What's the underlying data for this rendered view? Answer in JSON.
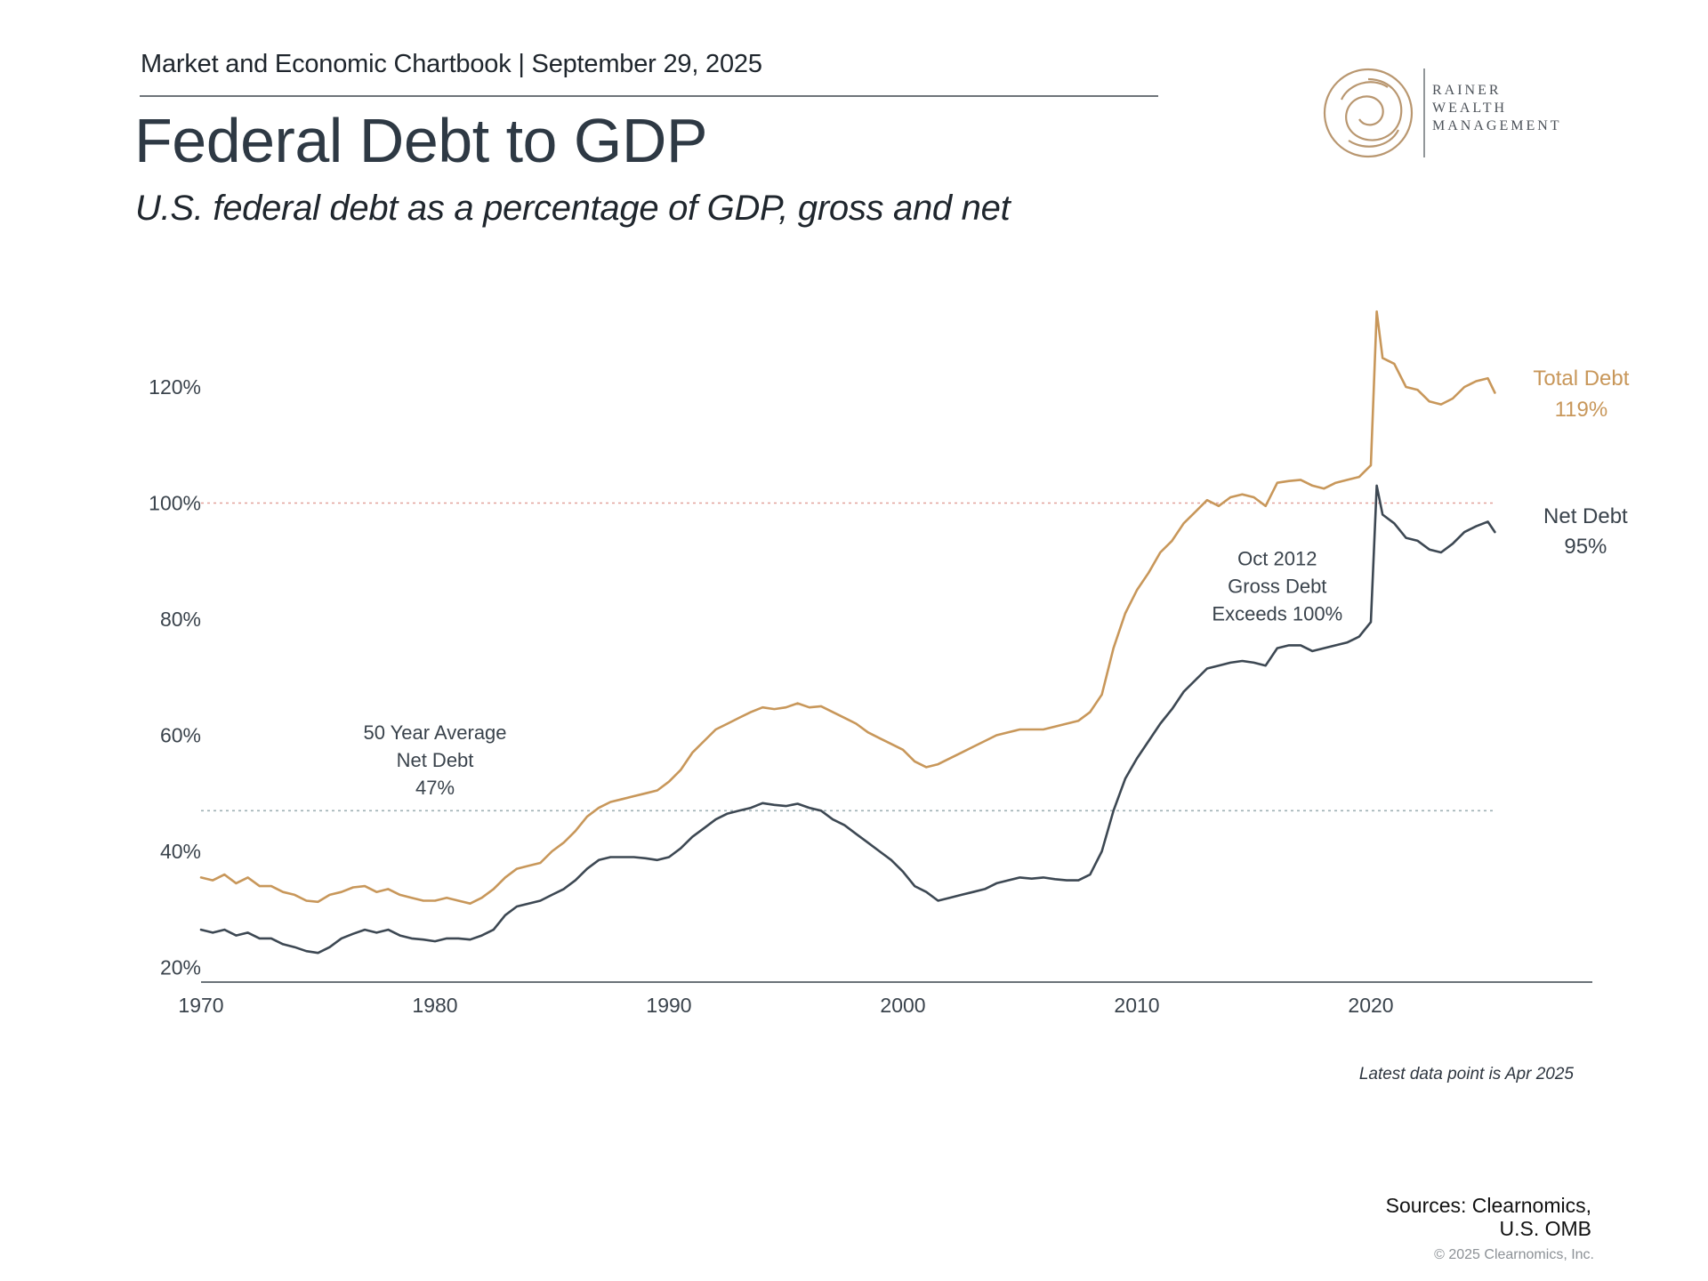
{
  "header": {
    "line": "Market and Economic Chartbook | September 29, 2025",
    "title": "Federal Debt to GDP",
    "subtitle": "U.S. federal debt as a percentage of GDP, gross and net"
  },
  "logo": {
    "line1": "RAINER",
    "line2": "WEALTH",
    "line3": "MANAGEMENT"
  },
  "chart_data": {
    "type": "line",
    "title": "Federal Debt to GDP",
    "subtitle": "U.S. federal debt as a percentage of GDP, gross and net",
    "xlim": [
      1970,
      2030
    ],
    "ylim": [
      16,
      136
    ],
    "x_ticks": [
      1970,
      1980,
      1990,
      2000,
      2010,
      2020
    ],
    "y_ticks": [
      20,
      40,
      60,
      80,
      100,
      120
    ],
    "y_tick_labels": [
      "20%",
      "40%",
      "60%",
      "80%",
      "100%",
      "120%"
    ],
    "grid": false,
    "reference_lines": [
      {
        "y": 100,
        "style": "dotted",
        "color": "#e2a19b"
      },
      {
        "y": 47,
        "style": "dotted",
        "color": "#9fb0b4"
      }
    ],
    "series": [
      {
        "name": "Total Debt",
        "end_label": "119%",
        "color": "#c8975a",
        "points": [
          [
            1970.0,
            35.5
          ],
          [
            1970.5,
            35.0
          ],
          [
            1971.0,
            36.0
          ],
          [
            1971.5,
            34.5
          ],
          [
            1972.0,
            35.5
          ],
          [
            1972.5,
            34.0
          ],
          [
            1973.0,
            34.0
          ],
          [
            1973.5,
            33.0
          ],
          [
            1974.0,
            32.5
          ],
          [
            1974.5,
            31.5
          ],
          [
            1975.0,
            31.3
          ],
          [
            1975.5,
            32.5
          ],
          [
            1976.0,
            33.0
          ],
          [
            1976.5,
            33.8
          ],
          [
            1977.0,
            34.0
          ],
          [
            1977.5,
            33.0
          ],
          [
            1978.0,
            33.5
          ],
          [
            1978.5,
            32.5
          ],
          [
            1979.0,
            32.0
          ],
          [
            1979.5,
            31.5
          ],
          [
            1980.0,
            31.5
          ],
          [
            1980.5,
            32.0
          ],
          [
            1981.0,
            31.5
          ],
          [
            1981.5,
            31.0
          ],
          [
            1982.0,
            32.0
          ],
          [
            1982.5,
            33.5
          ],
          [
            1983.0,
            35.5
          ],
          [
            1983.5,
            37.0
          ],
          [
            1984.0,
            37.5
          ],
          [
            1984.5,
            38.0
          ],
          [
            1985.0,
            40.0
          ],
          [
            1985.5,
            41.5
          ],
          [
            1986.0,
            43.5
          ],
          [
            1986.5,
            46.0
          ],
          [
            1987.0,
            47.5
          ],
          [
            1987.5,
            48.5
          ],
          [
            1988.0,
            49.0
          ],
          [
            1988.5,
            49.5
          ],
          [
            1989.0,
            50.0
          ],
          [
            1989.5,
            50.5
          ],
          [
            1990.0,
            52.0
          ],
          [
            1990.5,
            54.0
          ],
          [
            1991.0,
            57.0
          ],
          [
            1991.5,
            59.0
          ],
          [
            1992.0,
            61.0
          ],
          [
            1992.5,
            62.0
          ],
          [
            1993.0,
            63.0
          ],
          [
            1993.5,
            64.0
          ],
          [
            1994.0,
            64.8
          ],
          [
            1994.5,
            64.5
          ],
          [
            1995.0,
            64.8
          ],
          [
            1995.5,
            65.5
          ],
          [
            1996.0,
            64.8
          ],
          [
            1996.5,
            65.0
          ],
          [
            1997.0,
            64.0
          ],
          [
            1997.5,
            63.0
          ],
          [
            1998.0,
            62.0
          ],
          [
            1998.5,
            60.5
          ],
          [
            1999.0,
            59.5
          ],
          [
            1999.5,
            58.5
          ],
          [
            2000.0,
            57.5
          ],
          [
            2000.5,
            55.5
          ],
          [
            2001.0,
            54.5
          ],
          [
            2001.5,
            55.0
          ],
          [
            2002.0,
            56.0
          ],
          [
            2002.5,
            57.0
          ],
          [
            2003.0,
            58.0
          ],
          [
            2003.5,
            59.0
          ],
          [
            2004.0,
            60.0
          ],
          [
            2004.5,
            60.5
          ],
          [
            2005.0,
            61.0
          ],
          [
            2005.5,
            61.0
          ],
          [
            2006.0,
            61.0
          ],
          [
            2006.5,
            61.5
          ],
          [
            2007.0,
            62.0
          ],
          [
            2007.5,
            62.5
          ],
          [
            2008.0,
            64.0
          ],
          [
            2008.5,
            67.0
          ],
          [
            2009.0,
            75.0
          ],
          [
            2009.5,
            81.0
          ],
          [
            2010.0,
            85.0
          ],
          [
            2010.5,
            88.0
          ],
          [
            2011.0,
            91.5
          ],
          [
            2011.5,
            93.5
          ],
          [
            2012.0,
            96.5
          ],
          [
            2012.5,
            98.5
          ],
          [
            2013.0,
            100.5
          ],
          [
            2013.5,
            99.5
          ],
          [
            2014.0,
            101.0
          ],
          [
            2014.5,
            101.5
          ],
          [
            2015.0,
            101.0
          ],
          [
            2015.5,
            99.5
          ],
          [
            2016.0,
            103.5
          ],
          [
            2016.5,
            103.8
          ],
          [
            2017.0,
            104.0
          ],
          [
            2017.5,
            103.0
          ],
          [
            2018.0,
            102.5
          ],
          [
            2018.5,
            103.5
          ],
          [
            2019.0,
            104.0
          ],
          [
            2019.5,
            104.5
          ],
          [
            2020.0,
            106.5
          ],
          [
            2020.25,
            133.0
          ],
          [
            2020.5,
            125.0
          ],
          [
            2021.0,
            124.0
          ],
          [
            2021.5,
            120.0
          ],
          [
            2022.0,
            119.5
          ],
          [
            2022.5,
            117.5
          ],
          [
            2023.0,
            117.0
          ],
          [
            2023.5,
            118.0
          ],
          [
            2024.0,
            120.0
          ],
          [
            2024.5,
            121.0
          ],
          [
            2025.0,
            121.5
          ],
          [
            2025.3,
            119.0
          ]
        ]
      },
      {
        "name": "Net Debt",
        "end_label": "95%",
        "color": "#3d4853",
        "points": [
          [
            1970.0,
            26.5
          ],
          [
            1970.5,
            26.0
          ],
          [
            1971.0,
            26.5
          ],
          [
            1971.5,
            25.5
          ],
          [
            1972.0,
            26.0
          ],
          [
            1972.5,
            25.0
          ],
          [
            1973.0,
            25.0
          ],
          [
            1973.5,
            24.0
          ],
          [
            1974.0,
            23.5
          ],
          [
            1974.5,
            22.8
          ],
          [
            1975.0,
            22.5
          ],
          [
            1975.5,
            23.5
          ],
          [
            1976.0,
            25.0
          ],
          [
            1976.5,
            25.8
          ],
          [
            1977.0,
            26.5
          ],
          [
            1977.5,
            26.0
          ],
          [
            1978.0,
            26.5
          ],
          [
            1978.5,
            25.5
          ],
          [
            1979.0,
            25.0
          ],
          [
            1979.5,
            24.8
          ],
          [
            1980.0,
            24.5
          ],
          [
            1980.5,
            25.0
          ],
          [
            1981.0,
            25.0
          ],
          [
            1981.5,
            24.8
          ],
          [
            1982.0,
            25.5
          ],
          [
            1982.5,
            26.5
          ],
          [
            1983.0,
            29.0
          ],
          [
            1983.5,
            30.5
          ],
          [
            1984.0,
            31.0
          ],
          [
            1984.5,
            31.5
          ],
          [
            1985.0,
            32.5
          ],
          [
            1985.5,
            33.5
          ],
          [
            1986.0,
            35.0
          ],
          [
            1986.5,
            37.0
          ],
          [
            1987.0,
            38.5
          ],
          [
            1987.5,
            39.0
          ],
          [
            1988.0,
            39.0
          ],
          [
            1988.5,
            39.0
          ],
          [
            1989.0,
            38.8
          ],
          [
            1989.5,
            38.5
          ],
          [
            1990.0,
            39.0
          ],
          [
            1990.5,
            40.5
          ],
          [
            1991.0,
            42.5
          ],
          [
            1991.5,
            44.0
          ],
          [
            1992.0,
            45.5
          ],
          [
            1992.5,
            46.5
          ],
          [
            1993.0,
            47.0
          ],
          [
            1993.5,
            47.5
          ],
          [
            1994.0,
            48.3
          ],
          [
            1994.5,
            48.0
          ],
          [
            1995.0,
            47.8
          ],
          [
            1995.5,
            48.2
          ],
          [
            1996.0,
            47.5
          ],
          [
            1996.5,
            47.0
          ],
          [
            1997.0,
            45.5
          ],
          [
            1997.5,
            44.5
          ],
          [
            1998.0,
            43.0
          ],
          [
            1998.5,
            41.5
          ],
          [
            1999.0,
            40.0
          ],
          [
            1999.5,
            38.5
          ],
          [
            2000.0,
            36.5
          ],
          [
            2000.5,
            34.0
          ],
          [
            2001.0,
            33.0
          ],
          [
            2001.5,
            31.5
          ],
          [
            2002.0,
            32.0
          ],
          [
            2002.5,
            32.5
          ],
          [
            2003.0,
            33.0
          ],
          [
            2003.5,
            33.5
          ],
          [
            2004.0,
            34.5
          ],
          [
            2004.5,
            35.0
          ],
          [
            2005.0,
            35.5
          ],
          [
            2005.5,
            35.3
          ],
          [
            2006.0,
            35.5
          ],
          [
            2006.5,
            35.2
          ],
          [
            2007.0,
            35.0
          ],
          [
            2007.5,
            35.0
          ],
          [
            2008.0,
            36.0
          ],
          [
            2008.5,
            40.0
          ],
          [
            2009.0,
            47.0
          ],
          [
            2009.5,
            52.5
          ],
          [
            2010.0,
            56.0
          ],
          [
            2010.5,
            59.0
          ],
          [
            2011.0,
            62.0
          ],
          [
            2011.5,
            64.5
          ],
          [
            2012.0,
            67.5
          ],
          [
            2012.5,
            69.5
          ],
          [
            2013.0,
            71.5
          ],
          [
            2013.5,
            72.0
          ],
          [
            2014.0,
            72.5
          ],
          [
            2014.5,
            72.8
          ],
          [
            2015.0,
            72.5
          ],
          [
            2015.5,
            72.0
          ],
          [
            2016.0,
            75.0
          ],
          [
            2016.5,
            75.5
          ],
          [
            2017.0,
            75.5
          ],
          [
            2017.5,
            74.5
          ],
          [
            2018.0,
            75.0
          ],
          [
            2018.5,
            75.5
          ],
          [
            2019.0,
            76.0
          ],
          [
            2019.5,
            77.0
          ],
          [
            2020.0,
            79.5
          ],
          [
            2020.25,
            103.0
          ],
          [
            2020.5,
            98.0
          ],
          [
            2021.0,
            96.5
          ],
          [
            2021.5,
            94.0
          ],
          [
            2022.0,
            93.5
          ],
          [
            2022.5,
            92.0
          ],
          [
            2023.0,
            91.5
          ],
          [
            2023.5,
            93.0
          ],
          [
            2024.0,
            95.0
          ],
          [
            2024.5,
            96.0
          ],
          [
            2025.0,
            96.8
          ],
          [
            2025.3,
            95.0
          ]
        ]
      }
    ],
    "annotations": [
      {
        "lines": [
          "Oct 2012",
          "Gross Debt",
          "Exceeds 100%"
        ],
        "x": 2016,
        "y": 90.5
      },
      {
        "lines": [
          "50 Year Average",
          "Net Debt",
          "47%"
        ],
        "x": 1980,
        "y": 60.5
      }
    ]
  },
  "footnote": "Latest data point is Apr 2025",
  "sources": {
    "line1": "Sources: Clearnomics,",
    "line2": "U.S. OMB"
  },
  "copyright": "© 2025 Clearnomics, Inc."
}
